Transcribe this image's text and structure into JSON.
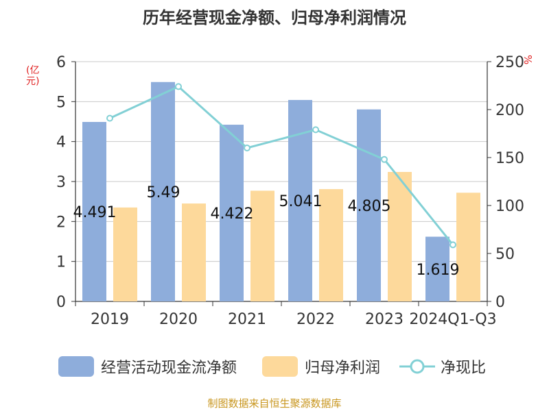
{
  "chart_data": {
    "type": "bar",
    "title": "历年经营现金净额、归母净利润情况",
    "categories": [
      "2019",
      "2020",
      "2021",
      "2022",
      "2023",
      "2024Q1-Q3"
    ],
    "series": [
      {
        "name": "经营活动现金流净额",
        "axis": "left",
        "type": "bar",
        "values": [
          4.491,
          5.49,
          4.422,
          5.041,
          4.805,
          1.619
        ],
        "data_labels": [
          "4.491",
          "5.49",
          "4.422",
          "5.041",
          "4.805",
          "1.619"
        ],
        "color": "#8eaddb"
      },
      {
        "name": "归母净利润",
        "axis": "left",
        "type": "bar",
        "values": [
          2.35,
          2.45,
          2.77,
          2.81,
          3.24,
          2.72
        ],
        "color": "#fdd99b"
      },
      {
        "name": "净现比",
        "axis": "right",
        "type": "line",
        "values": [
          191,
          224,
          160,
          179,
          148,
          59
        ],
        "color": "#82d0d5"
      }
    ],
    "left_axis": {
      "unit": "(亿元)",
      "ylim": [
        0,
        6
      ],
      "ticks": [
        "0",
        "1",
        "2",
        "3",
        "4",
        "5",
        "6"
      ]
    },
    "right_axis": {
      "unit": "%",
      "ylim": [
        0,
        250
      ],
      "ticks": [
        "0",
        "50",
        "100",
        "150",
        "200",
        "250"
      ]
    },
    "grid": true,
    "legend_position": "bottom"
  },
  "source": "制图数据来自恒生聚源数据库"
}
